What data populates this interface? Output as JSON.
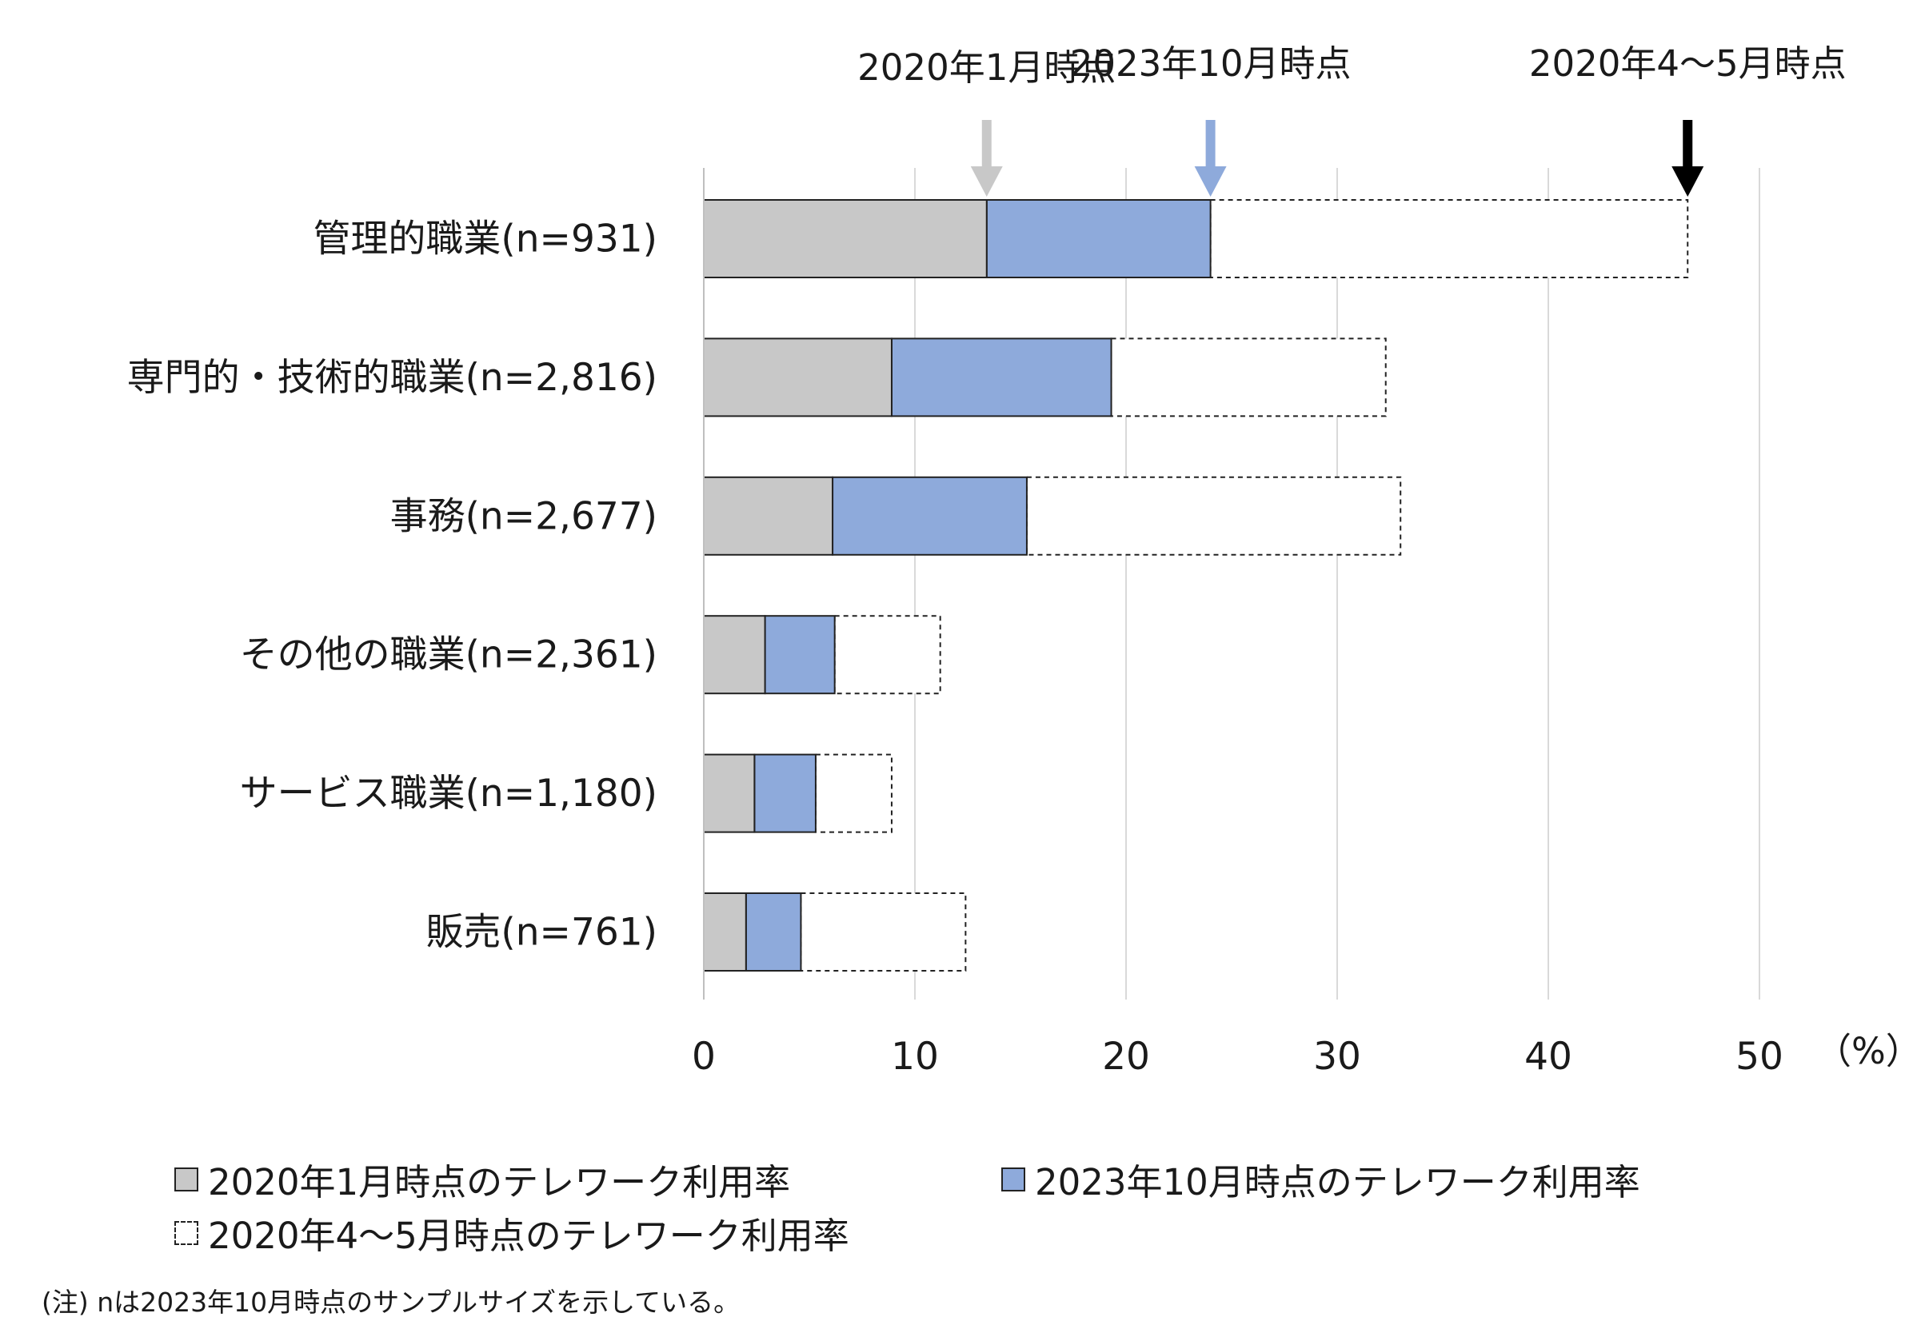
{
  "chart_data": {
    "type": "bar",
    "orientation": "horizontal",
    "unit": "（%）",
    "xlim": [
      0,
      50
    ],
    "xticks": [
      "0",
      "10",
      "20",
      "30",
      "40",
      "50"
    ],
    "grid": true,
    "categories": [
      "管理的職業(n=931)",
      "専門的・技術的職業(n=2,816)",
      "事務(n=2,677)",
      "その他の職業(n=2,361)",
      "サービス職業(n=1,180)",
      "販売(n=761)"
    ],
    "series": [
      {
        "name": "2020年1月時点のテレワーク利用率",
        "color": "#c8c8c8",
        "values": [
          13.4,
          8.9,
          6.1,
          2.9,
          2.4,
          2.0
        ]
      },
      {
        "name": "2023年10月時点のテレワーク利用率",
        "color": "#8eaadb",
        "values": [
          24.0,
          19.3,
          15.3,
          6.2,
          5.3,
          4.6
        ]
      },
      {
        "name": "2020年4〜5月時点のテレワーク利用率",
        "color": "#ffffff",
        "values": [
          46.6,
          32.3,
          33.0,
          11.2,
          8.9,
          12.4
        ]
      }
    ],
    "markers": [
      {
        "label": "2020年1月時点",
        "color": "#c8c8c8"
      },
      {
        "label": "2023年10月時点",
        "color": "#8eaadb"
      },
      {
        "label": "2020年4〜5月時点",
        "color": "#000000"
      }
    ],
    "legend_position": "bottom",
    "note": "(注) nは2023年10月時点のサンプルサイズを示している。"
  }
}
